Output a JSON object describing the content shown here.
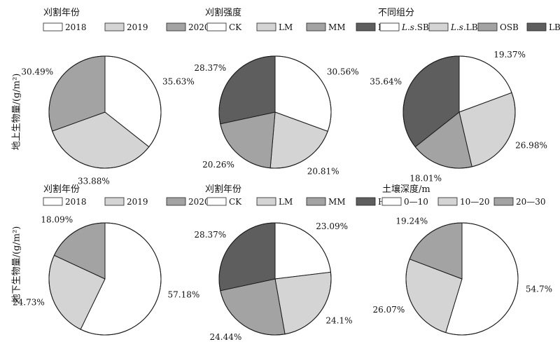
{
  "row_labels": {
    "top": "地上生物量/(g/m²)",
    "bottom": "地下生物量/(g/m²)"
  },
  "chart_data": [
    {
      "type": "pie",
      "title": "刈割年份",
      "categories": [
        "2018",
        "2019",
        "2020"
      ],
      "values": [
        35.63,
        33.88,
        30.49
      ],
      "value_labels": [
        "35.63%",
        "33.88%",
        "30.49%"
      ],
      "colors": [
        "#ffffff",
        "#d4d4d4",
        "#a3a3a3"
      ],
      "legend_position": "top"
    },
    {
      "type": "pie",
      "title": "刈割强度",
      "categories": [
        "CK",
        "LM",
        "MM",
        "HM"
      ],
      "values": [
        30.56,
        20.81,
        20.26,
        28.37
      ],
      "value_labels": [
        "30.56%",
        "20.81%",
        "20.26%",
        "28.37%"
      ],
      "colors": [
        "#ffffff",
        "#d4d4d4",
        "#a3a3a3",
        "#5e5e5e"
      ],
      "legend_position": "top"
    },
    {
      "type": "pie",
      "title": "不同组分",
      "categories": [
        "L.s.SB",
        "L.s.LB",
        "OSB",
        "LB"
      ],
      "values": [
        19.37,
        26.98,
        18.01,
        35.64
      ],
      "value_labels": [
        "19.37%",
        "26.98%",
        "18.01%",
        "35.64%"
      ],
      "colors": [
        "#ffffff",
        "#d4d4d4",
        "#a3a3a3",
        "#5e5e5e"
      ],
      "legend_position": "top"
    },
    {
      "type": "pie",
      "title": "刈割年份",
      "categories": [
        "2018",
        "2019",
        "2020"
      ],
      "values": [
        57.18,
        24.73,
        18.09
      ],
      "value_labels": [
        "57.18%",
        "24.73%",
        "18.09%"
      ],
      "colors": [
        "#ffffff",
        "#d4d4d4",
        "#a3a3a3"
      ],
      "legend_position": "top"
    },
    {
      "type": "pie",
      "title": "刈割年份",
      "categories": [
        "CK",
        "LM",
        "MM",
        "HM"
      ],
      "values": [
        23.09,
        24.1,
        24.44,
        28.37
      ],
      "value_labels": [
        "23.09%",
        "24.1%",
        "24.44%",
        "28.37%"
      ],
      "colors": [
        "#ffffff",
        "#d4d4d4",
        "#a3a3a3",
        "#5e5e5e"
      ],
      "legend_position": "top"
    },
    {
      "type": "pie",
      "title": "土壤深度/m",
      "categories": [
        "0—10",
        "10—20",
        "20—30"
      ],
      "values": [
        54.7,
        26.07,
        19.24
      ],
      "value_labels": [
        "54.7%",
        "26.07%",
        "19.24%"
      ],
      "colors": [
        "#ffffff",
        "#d4d4d4",
        "#a3a3a3"
      ],
      "legend_position": "top"
    }
  ]
}
